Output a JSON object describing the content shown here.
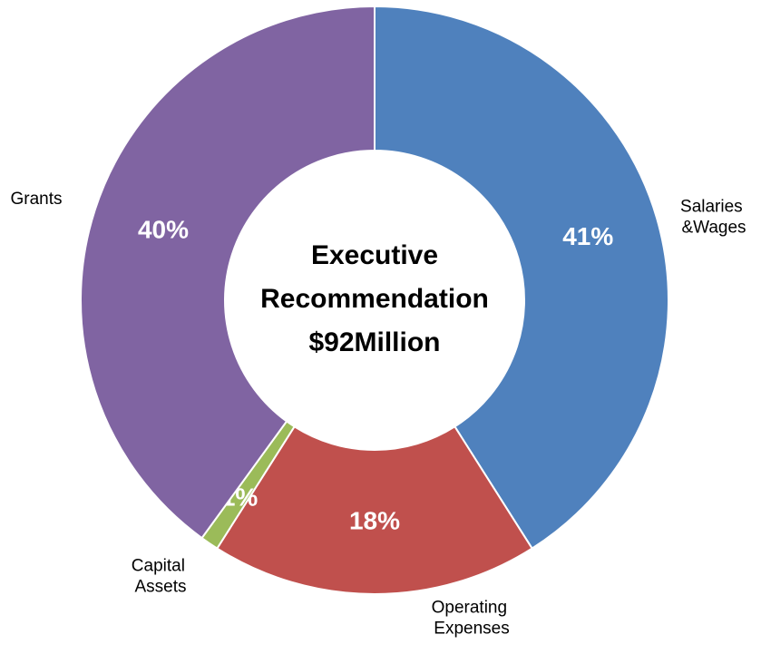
{
  "chart_data": {
    "type": "donut",
    "center_label": [
      "Executive",
      "Recommendation",
      "$92Million"
    ],
    "categories": [
      "Salaries &Wages",
      "Operating Expenses",
      "Capital Assets",
      "Grants"
    ],
    "values": [
      41,
      18,
      1,
      40
    ],
    "value_labels": [
      "41%",
      "18%",
      "1%",
      "40%"
    ],
    "colors": [
      "#4f81bd",
      "#c0504d",
      "#9bbb59",
      "#8064a2"
    ]
  }
}
